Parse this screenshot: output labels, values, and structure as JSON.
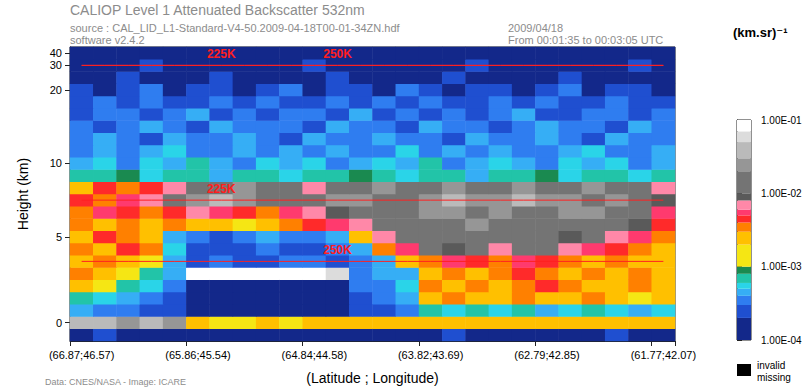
{
  "chart_data": {
    "type": "heatmap",
    "title": "CALIOP Level 1 Attenuated Backscatter 532nm",
    "subtitle": "source : CAL_LID_L1-Standard-V4-50.2009-04-18T00-01-34ZN.hdf",
    "annotations": [
      "software v2.4.2",
      "2009/04/18",
      "From 00:01:35 to 00:03:05 UTC",
      "Data: CNES/NASA - Image: ICARE"
    ],
    "x_label": "(Latitude ; Longitude)",
    "y_label": "Height (km)",
    "x": [
      "(66.87;46.57)",
      null,
      null,
      null,
      null,
      "(65.86;45.54)",
      null,
      null,
      null,
      null,
      "(64.84;44.58)",
      null,
      null,
      null,
      null,
      "(63.82;43.69)",
      null,
      null,
      null,
      null,
      "(62.79;42.85)",
      null,
      null,
      null,
      null,
      "(61.77;42.07)"
    ],
    "y": [
      -0.4,
      0,
      0.7,
      1.4,
      2.1,
      2.8,
      3.5,
      4.2,
      5,
      5.8,
      6.6,
      7.4,
      8.2,
      9,
      10,
      11.5,
      13,
      14.5,
      16,
      17.5,
      20,
      25,
      30,
      40
    ],
    "yticks": [
      0,
      5,
      10,
      20,
      30,
      40
    ],
    "cells": [
      [
        0.00012,
        0.00025,
        0.00012,
        0.00015,
        0.00012,
        0.00012,
        0.00011,
        0.00012,
        0.00011,
        0.00012,
        0.00011,
        0.00012,
        0.00013,
        0.00012,
        0.00015,
        0.00012,
        0.00025,
        0.00012,
        0.00013,
        0.00012,
        0.00015,
        0.00012,
        0.00012,
        0.00025,
        0.00012,
        0.00013
      ],
      [
        0.03,
        0.03,
        0.025,
        0.03,
        0.02,
        0.002,
        0.0015,
        0.0015,
        0.002,
        0.0015,
        0.002,
        0.002,
        0.002,
        0.0025,
        0.002,
        0.002,
        0.0025,
        0.002,
        0.002,
        0.0025,
        0.002,
        0.002,
        0.0025,
        0.002,
        0.002,
        0.002
      ],
      [
        0.0004,
        0.0003,
        0.0003,
        0.00025,
        0.0002,
        0.00011,
        0.00011,
        0.00011,
        0.00011,
        0.00011,
        0.00011,
        0.00011,
        0.0002,
        0.00025,
        0.0003,
        0.0006,
        0.0005,
        0.0007,
        0.0005,
        0.0006,
        0.0004,
        0.0005,
        0.0006,
        0.0005,
        0.0004,
        0.0005
      ],
      [
        0.0006,
        0.0005,
        0.0004,
        0.0003,
        0.00025,
        0.00011,
        0.00011,
        0.00011,
        0.00011,
        0.00011,
        0.00011,
        0.00011,
        0.00025,
        0.0003,
        0.0004,
        0.002,
        0.003,
        0.0025,
        0.002,
        0.003,
        0.0025,
        0.002,
        0.003,
        0.002,
        0.0015,
        0.002
      ],
      [
        0.002,
        0.0015,
        0.0006,
        0.0005,
        0.0003,
        0.00012,
        0.00012,
        0.00012,
        0.00012,
        0.00012,
        0.00012,
        0.00012,
        0.0003,
        0.00035,
        0.0005,
        0.003,
        0.002,
        0.003,
        0.0025,
        0.003,
        0.004,
        0.003,
        0.002,
        0.0025,
        0.003,
        0.002
      ],
      [
        0.003,
        0.002,
        0.0015,
        0.0006,
        0.0004,
        0.08,
        0.09,
        0.08,
        0.09,
        0.08,
        0.09,
        0.06,
        0.0003,
        0.0004,
        0.0004,
        0.0025,
        0.003,
        0.002,
        0.003,
        0.004,
        0.003,
        0.0025,
        0.003,
        0.002,
        0.003,
        0.0025
      ],
      [
        0.0025,
        0.003,
        0.002,
        0.0015,
        0.0004,
        0.00025,
        0.0003,
        0.00025,
        0.00025,
        0.0003,
        0.0003,
        0.00025,
        0.00035,
        0.0004,
        0.002,
        0.003,
        0.005,
        0.004,
        0.003,
        0.005,
        0.004,
        0.003,
        0.0025,
        0.003,
        0.002,
        0.0025
      ],
      [
        0.003,
        0.002,
        0.004,
        0.003,
        0.0005,
        0.00025,
        0.0002,
        0.00025,
        0.0003,
        0.00025,
        0.00025,
        0.0003,
        0.0004,
        0.003,
        0.005,
        0.012,
        0.008,
        0.012,
        0.006,
        0.012,
        0.015,
        0.006,
        0.005,
        0.004,
        0.003,
        0.0025
      ],
      [
        0.002,
        0.004,
        0.003,
        0.0025,
        0.0004,
        0.0003,
        0.00025,
        0.0003,
        0.0004,
        0.00035,
        0.0003,
        0.0004,
        0.0025,
        0.006,
        0.012,
        0.015,
        0.012,
        0.015,
        0.012,
        0.015,
        0.012,
        0.008,
        0.012,
        0.006,
        0.005,
        0.003
      ],
      [
        0.003,
        0.002,
        0.0035,
        0.0025,
        0.003,
        0.002,
        0.0025,
        0.0015,
        0.002,
        0.003,
        0.004,
        0.005,
        0.006,
        0.012,
        0.015,
        0.018,
        0.015,
        0.02,
        0.015,
        0.012,
        0.018,
        0.015,
        0.012,
        0.015,
        0.008,
        0.004
      ],
      [
        0.003,
        0.005,
        0.004,
        0.003,
        0.004,
        0.006,
        0.005,
        0.004,
        0.0035,
        0.005,
        0.006,
        0.008,
        0.012,
        0.015,
        0.018,
        0.025,
        0.02,
        0.015,
        0.022,
        0.018,
        0.015,
        0.025,
        0.02,
        0.015,
        0.012,
        0.005
      ],
      [
        0.004,
        0.003,
        0.005,
        0.006,
        0.012,
        0.025,
        0.03,
        0.02,
        0.015,
        0.012,
        0.015,
        0.02,
        0.025,
        0.015,
        0.012,
        0.02,
        0.03,
        0.025,
        0.02,
        0.03,
        0.025,
        0.02,
        0.018,
        0.022,
        0.015,
        0.008
      ],
      [
        0.0025,
        0.004,
        0.003,
        0.0045,
        0.006,
        0.012,
        0.015,
        0.022,
        0.018,
        0.012,
        0.007,
        0.012,
        0.015,
        0.025,
        0.018,
        0.015,
        0.02,
        0.012,
        0.015,
        0.025,
        0.018,
        0.013,
        0.02,
        0.015,
        0.012,
        0.007
      ],
      [
        0.0007,
        0.0006,
        0.0009,
        0.0005,
        0.0007,
        0.0006,
        0.00045,
        0.0007,
        0.0006,
        0.0005,
        0.0007,
        0.0006,
        0.0009,
        0.0006,
        0.0005,
        0.0007,
        0.0006,
        0.00045,
        0.0007,
        0.0006,
        0.0009,
        0.0005,
        0.0007,
        0.0006,
        0.0005,
        0.0006
      ],
      [
        0.0004,
        0.00055,
        0.00035,
        0.0005,
        0.0004,
        0.0006,
        0.0004,
        0.00035,
        0.0005,
        0.0004,
        0.00055,
        0.00035,
        0.0004,
        0.0005,
        0.0004,
        0.0006,
        0.00035,
        0.0004,
        0.0005,
        0.0004,
        0.00035,
        0.00055,
        0.0004,
        0.0005,
        0.00035,
        0.0004
      ],
      [
        0.00035,
        0.00045,
        0.0003,
        0.0004,
        0.0005,
        0.00035,
        0.0003,
        0.00045,
        0.00035,
        0.0004,
        0.0003,
        0.00045,
        0.00035,
        0.0003,
        0.0005,
        0.00035,
        0.0004,
        0.0003,
        0.00045,
        0.00035,
        0.0003,
        0.0004,
        0.0005,
        0.00035,
        0.0003,
        0.0004
      ],
      [
        0.0003,
        0.0004,
        0.00035,
        0.00025,
        0.00045,
        0.0003,
        0.00035,
        0.0004,
        0.0003,
        0.00025,
        0.0004,
        0.00035,
        0.0003,
        0.00045,
        0.0003,
        0.00035,
        0.00025,
        0.0004,
        0.0003,
        0.00035,
        0.00045,
        0.0003,
        0.00025,
        0.0004,
        0.00035,
        0.0003
      ],
      [
        0.00035,
        0.00025,
        0.0003,
        0.0004,
        0.0003,
        0.00025,
        0.00045,
        0.0003,
        0.00035,
        0.0003,
        0.00025,
        0.0004,
        0.0003,
        0.00035,
        0.00025,
        0.0004,
        0.0003,
        0.00035,
        0.00025,
        0.0003,
        0.0004,
        0.00035,
        0.0003,
        0.00025,
        0.00045,
        0.0003
      ],
      [
        0.00025,
        0.00035,
        0.0003,
        0.00022,
        0.0003,
        0.0004,
        0.00025,
        0.0003,
        0.00022,
        0.00035,
        0.0003,
        0.00025,
        0.0004,
        0.00022,
        0.0003,
        0.00025,
        0.00035,
        0.00022,
        0.0003,
        0.0004,
        0.00025,
        0.00022,
        0.00035,
        0.0003,
        0.00025,
        0.0003
      ],
      [
        0.00022,
        0.0003,
        0.00025,
        0.00035,
        0.00022,
        0.00025,
        0.0003,
        0.00022,
        0.00035,
        0.00025,
        0.00022,
        0.0003,
        0.00025,
        0.00035,
        0.00022,
        0.0003,
        0.00025,
        0.00022,
        0.00035,
        0.00025,
        0.0003,
        0.00022,
        0.00025,
        0.00035,
        0.00022,
        0.00025
      ],
      [
        0.00022,
        0.00018,
        0.00025,
        0.0003,
        0.00018,
        0.00022,
        0.00025,
        0.00018,
        0.00022,
        0.0003,
        0.00018,
        0.00025,
        0.00022,
        0.00018,
        0.0003,
        0.00022,
        0.00018,
        0.00025,
        0.00022,
        0.00018,
        0.00025,
        0.0003,
        0.00018,
        0.00022,
        0.00025,
        0.00018
      ],
      [
        0.00018,
        0.00015,
        0.00022,
        0.00016,
        0.00018,
        0.00015,
        0.00022,
        0.00016,
        0.00018,
        0.00015,
        0.00016,
        0.00022,
        0.00015,
        0.00018,
        0.00016,
        0.00015,
        0.00022,
        0.00018,
        0.00015,
        0.00016,
        0.00018,
        0.00022,
        0.00015,
        0.00016,
        0.00018,
        0.00015
      ],
      [
        0.00014,
        0.00015,
        0.00014,
        0.00021,
        0.00014,
        0.00015,
        0.00014,
        0.00014,
        0.00015,
        0.00014,
        0.00021,
        0.00014,
        0.00015,
        0.00014,
        0.00014,
        0.00015,
        0.00014,
        0.00021,
        0.00014,
        0.00015,
        0.00014,
        0.00014,
        0.00015,
        0.00014,
        0.00021,
        0.00014
      ],
      [
        0.00012,
        0.00013,
        0.00012,
        0.00012,
        0.00014,
        0.00012,
        0.00012,
        0.00013,
        0.00012,
        0.00012,
        0.00012,
        0.00014,
        0.00012,
        0.00012,
        0.00013,
        0.00012,
        0.00012,
        0.00012,
        0.00014,
        0.00012,
        0.00012,
        0.00013,
        0.00012,
        0.00012,
        0.00012,
        0.00013
      ]
    ],
    "contours": [
      {
        "label": "225K",
        "height": 30,
        "label_at": 6
      },
      {
        "label": "250K",
        "height": 30,
        "label_at": 11
      },
      {
        "label": "225K",
        "height": 7.4,
        "label_at": 6
      },
      {
        "label": "250K",
        "height": 3.5,
        "label_at": 11
      }
    ],
    "colorbar": {
      "title": "(km.sr)⁻¹",
      "range": [
        0.0001,
        0.1
      ],
      "ticks": [
        {
          "value": 0.0001,
          "label": "1.00E-04"
        },
        {
          "value": 0.001,
          "label": "1.00E-03"
        },
        {
          "value": 0.01,
          "label": "1.00E-02"
        },
        {
          "value": 0.1,
          "label": "1.00E-01"
        }
      ],
      "pieces": [
        {
          "min": 0.0001,
          "max": 0.0002,
          "color": "#13288a"
        },
        {
          "min": 0.0002,
          "max": 0.0003,
          "color": "#1f4fd0"
        },
        {
          "min": 0.0003,
          "max": 0.0004,
          "color": "#2f7df0"
        },
        {
          "min": 0.0004,
          "max": 0.0005,
          "color": "#36aef5"
        },
        {
          "min": 0.0005,
          "max": 0.0006,
          "color": "#2ad4e8"
        },
        {
          "min": 0.0006,
          "max": 0.0008,
          "color": "#22c4a8"
        },
        {
          "min": 0.0008,
          "max": 0.001,
          "color": "#1a8a50"
        },
        {
          "min": 0.001,
          "max": 0.002,
          "color": "#f5e614"
        },
        {
          "min": 0.002,
          "max": 0.003,
          "color": "#ffc000"
        },
        {
          "min": 0.003,
          "max": 0.004,
          "color": "#ff8000"
        },
        {
          "min": 0.004,
          "max": 0.005,
          "color": "#ff2a2a"
        },
        {
          "min": 0.005,
          "max": 0.006,
          "color": "#ff3a6e"
        },
        {
          "min": 0.006,
          "max": 0.008,
          "color": "#ff88a8"
        },
        {
          "min": 0.008,
          "max": 0.01,
          "color": "#5a5a5a"
        },
        {
          "min": 0.01,
          "max": 0.02,
          "color": "#747474"
        },
        {
          "min": 0.02,
          "max": 0.03,
          "color": "#969696"
        },
        {
          "min": 0.03,
          "max": 0.05,
          "color": "#bababa"
        },
        {
          "min": 0.05,
          "max": 0.07,
          "color": "#dcdcdc"
        },
        {
          "min": 0.07,
          "max": 0.1,
          "color": "#ffffff"
        }
      ]
    },
    "missing_legend": [
      "invalid",
      "missing"
    ]
  }
}
